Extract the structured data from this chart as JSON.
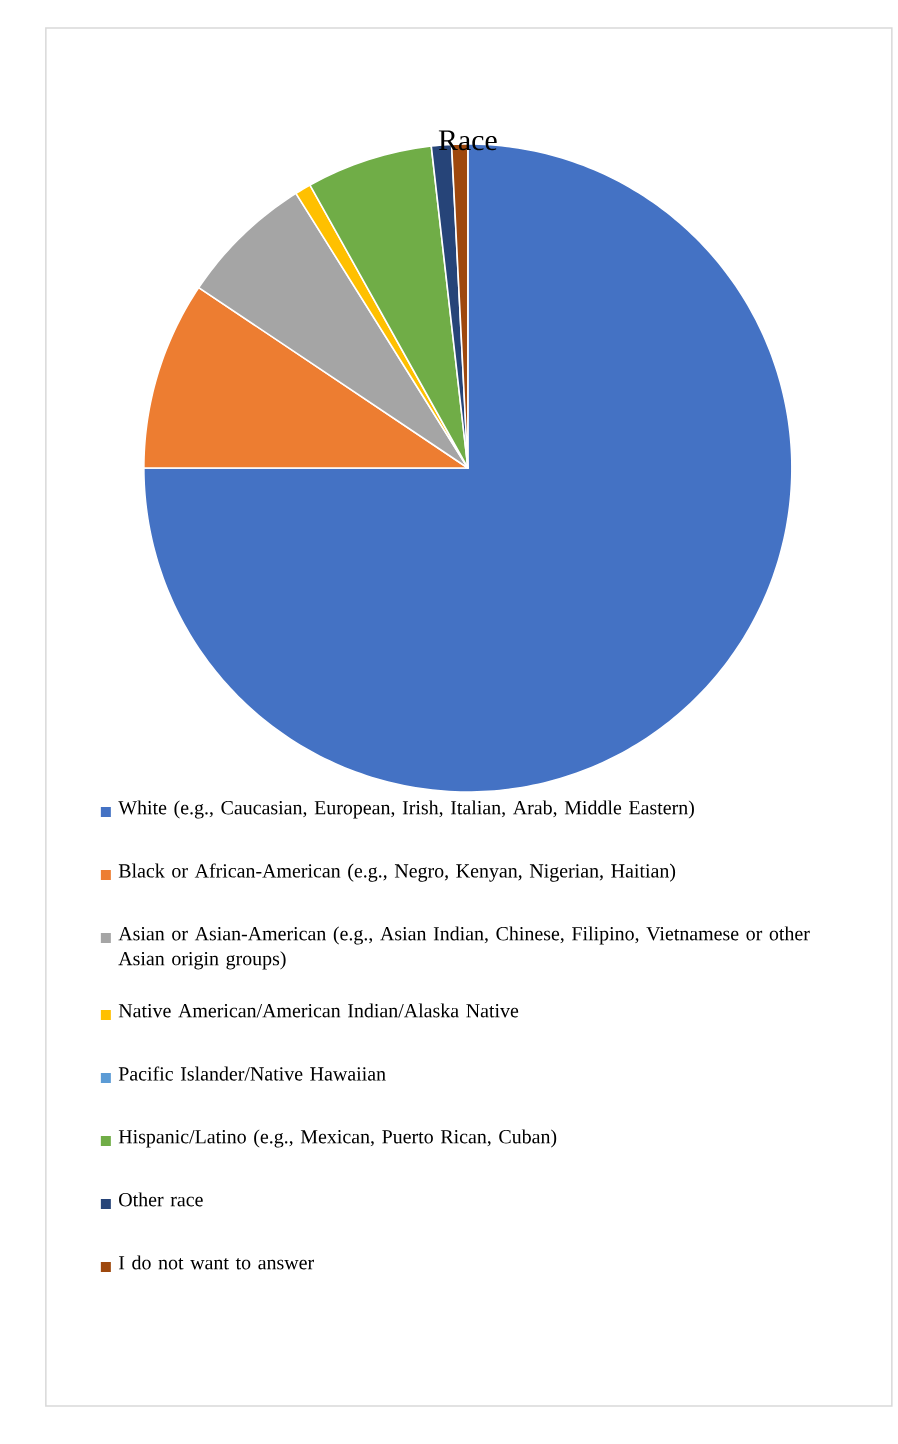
{
  "chart_data": {
    "type": "pie",
    "title": "Race",
    "categories": [
      "White (e.g., Caucasian, European, Irish, Italian, Arab, Middle Eastern)",
      "Black or African-American (e.g., Negro, Kenyan, Nigerian, Haitian)",
      "Asian or Asian-American (e.g., Asian Indian, Chinese, Filipino, Vietnamese or other Asian origin groups)",
      "Native American/American Indian/Alaska Native",
      "Pacific Islander/Native Hawaiian",
      "Hispanic/Latino (e.g., Mexican, Puerto Rican, Cuban)",
      "Other race",
      "I do not want to answer"
    ],
    "values": [
      75.0,
      9.4,
      6.7,
      0.8,
      0,
      6.3,
      1.0,
      0.8
    ],
    "colors": [
      "#4472c4",
      "#ed7d31",
      "#a5a5a5",
      "#ffc000",
      "#5b9bd5",
      "#70ad47",
      "#264478",
      "#9e480e"
    ],
    "legend": "bottom"
  }
}
